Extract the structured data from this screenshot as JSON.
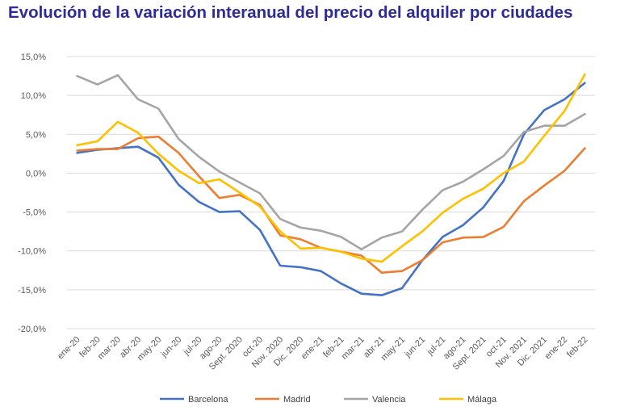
{
  "chart_data": {
    "type": "line",
    "title": "Evolución de la variación interanual del precio del alquiler por ciudades",
    "x": [
      "ene-20",
      "feb-20",
      "mar-20",
      "abr-20",
      "may-20",
      "jun-20",
      "jul-20",
      "ago-20",
      "Sept. 2020",
      "oct-20",
      "Nov. 2020",
      "Dic. 2020",
      "ene-21",
      "feb-21",
      "mar-21",
      "abr-21",
      "may-21",
      "jun-21",
      "jul-21",
      "ago-21",
      "Sept. 2021",
      "oct-21",
      "Nov. 2021",
      "Dic. 2021",
      "ene-22",
      "feb-22"
    ],
    "ylim": [
      -20,
      15
    ],
    "yticks": [
      15,
      10,
      5,
      0,
      -5,
      -10,
      -15,
      -20
    ],
    "ytick_labels": [
      "15,0%",
      "10,0%",
      "5,0%",
      "0,0%",
      "-5,0%",
      "-10,0%",
      "-15,0%",
      "-20,0%"
    ],
    "grid": "horizontal",
    "legend_position": "bottom",
    "series": [
      {
        "name": "Barcelona",
        "color": "#4472c4",
        "values": [
          2.6,
          3.0,
          3.2,
          3.4,
          2.0,
          -1.5,
          -3.7,
          -5.0,
          -4.9,
          -7.3,
          -11.9,
          -12.1,
          -12.6,
          -14.2,
          -15.5,
          -15.7,
          -14.8,
          -11.2,
          -8.2,
          -6.7,
          -4.4,
          -1.0,
          5.0,
          8.1,
          9.5,
          11.6
        ]
      },
      {
        "name": "Madrid",
        "color": "#ed7d31",
        "values": [
          2.9,
          3.1,
          3.1,
          4.5,
          4.7,
          2.6,
          -0.4,
          -3.2,
          -2.8,
          -4.1,
          -8.0,
          -8.5,
          -9.6,
          -10.1,
          -10.6,
          -12.8,
          -12.6,
          -11.2,
          -8.9,
          -8.3,
          -8.2,
          -6.9,
          -3.6,
          -1.6,
          0.3,
          3.2
        ]
      },
      {
        "name": "Valencia",
        "color": "#a5a5a5",
        "values": [
          12.5,
          11.4,
          12.6,
          9.5,
          8.3,
          4.4,
          2.1,
          0.2,
          -1.2,
          -2.6,
          -5.9,
          -7.0,
          -7.4,
          -8.2,
          -9.8,
          -8.3,
          -7.5,
          -4.7,
          -2.2,
          -1.1,
          0.5,
          2.2,
          5.3,
          6.1,
          6.1,
          7.6
        ]
      },
      {
        "name": "Málaga",
        "color": "#ffc000",
        "values": [
          3.6,
          4.1,
          6.6,
          5.2,
          2.5,
          0.3,
          -1.3,
          -0.8,
          -2.5,
          -4.3,
          -7.5,
          -9.7,
          -9.6,
          -10.1,
          -11.0,
          -11.4,
          -9.4,
          -7.5,
          -5.1,
          -3.3,
          -2.0,
          0.0,
          1.5,
          4.8,
          8.0,
          12.7
        ]
      }
    ]
  }
}
